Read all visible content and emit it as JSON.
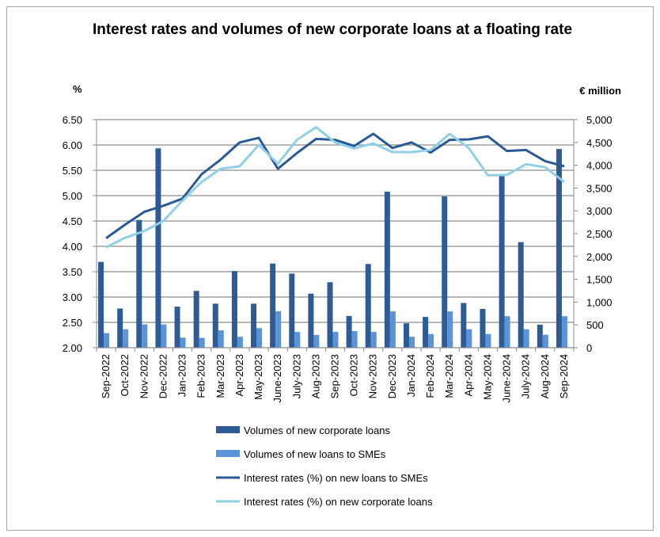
{
  "chart_data": {
    "type": "bar",
    "title": "Interest rates and volumes of new corporate loans at a floating rate",
    "ylabel_left": "%",
    "ylabel_right": "€ million",
    "ylim_left": [
      2.0,
      6.5
    ],
    "ylim_right": [
      0,
      5000
    ],
    "yticks_left": [
      "2.00",
      "2.50",
      "3.00",
      "3.50",
      "4.00",
      "4.50",
      "5.00",
      "5.50",
      "6.00",
      "6.50"
    ],
    "yticks_right": [
      "0",
      "500",
      "1,000",
      "1,500",
      "2,000",
      "2,500",
      "3,000",
      "3,500",
      "4,000",
      "4,500",
      "5,000"
    ],
    "grid": true,
    "legend_position": "bottom",
    "categories": [
      "Sep-2022",
      "Oct-2022",
      "Nov-2022",
      "Dec-2022",
      "Jan-2023",
      "Feb-2023",
      "Mar-2023",
      "Apr-2023",
      "May-2023",
      "June-2023",
      "July-2023",
      "Aug-2023",
      "Sep-2023",
      "Oct-2023",
      "Nov-2023",
      "Dec-2023",
      "Jan-2024",
      "Feb-2024",
      "Mar-2024",
      "Apr-2024",
      "May-2024",
      "June-2024",
      "July-2024",
      "Aug-2024",
      "Sep-2024"
    ],
    "series": [
      {
        "name": "Volumes of new corporate loans",
        "type": "bar",
        "axis": "right",
        "color": "#2f5b94",
        "values": [
          1880,
          860,
          2800,
          4370,
          900,
          1245,
          965,
          1680,
          965,
          1845,
          1625,
          1185,
          1435,
          695,
          1835,
          3420,
          535,
          675,
          3315,
          980,
          850,
          3760,
          2315,
          505,
          4355
        ]
      },
      {
        "name": "Volumes of new loans to SMEs",
        "type": "bar",
        "axis": "right",
        "color": "#5b93d8",
        "values": [
          320,
          405,
          510,
          510,
          220,
          215,
          380,
          240,
          430,
          800,
          345,
          280,
          345,
          365,
          345,
          795,
          240,
          300,
          795,
          405,
          300,
          690,
          405,
          285,
          690
        ]
      },
      {
        "name": "Interest rates (%) on new loans to SMEs",
        "type": "line",
        "axis": "left",
        "color": "#2a5a96",
        "values": [
          4.16,
          4.43,
          4.68,
          4.8,
          4.94,
          5.42,
          5.71,
          6.05,
          6.14,
          5.53,
          5.84,
          6.12,
          6.1,
          5.98,
          6.22,
          5.94,
          6.05,
          5.85,
          6.1,
          6.11,
          6.17,
          5.88,
          5.9,
          5.68,
          5.58
        ]
      },
      {
        "name": "Interest rates (%) on new corporate loans",
        "type": "line",
        "axis": "left",
        "color": "#8fd0e6",
        "values": [
          3.98,
          4.17,
          4.3,
          4.5,
          4.9,
          5.27,
          5.53,
          5.58,
          6.0,
          5.63,
          6.1,
          6.35,
          6.05,
          5.93,
          6.03,
          5.86,
          5.86,
          5.9,
          6.22,
          5.94,
          5.4,
          5.41,
          5.62,
          5.56,
          5.27
        ]
      }
    ]
  }
}
